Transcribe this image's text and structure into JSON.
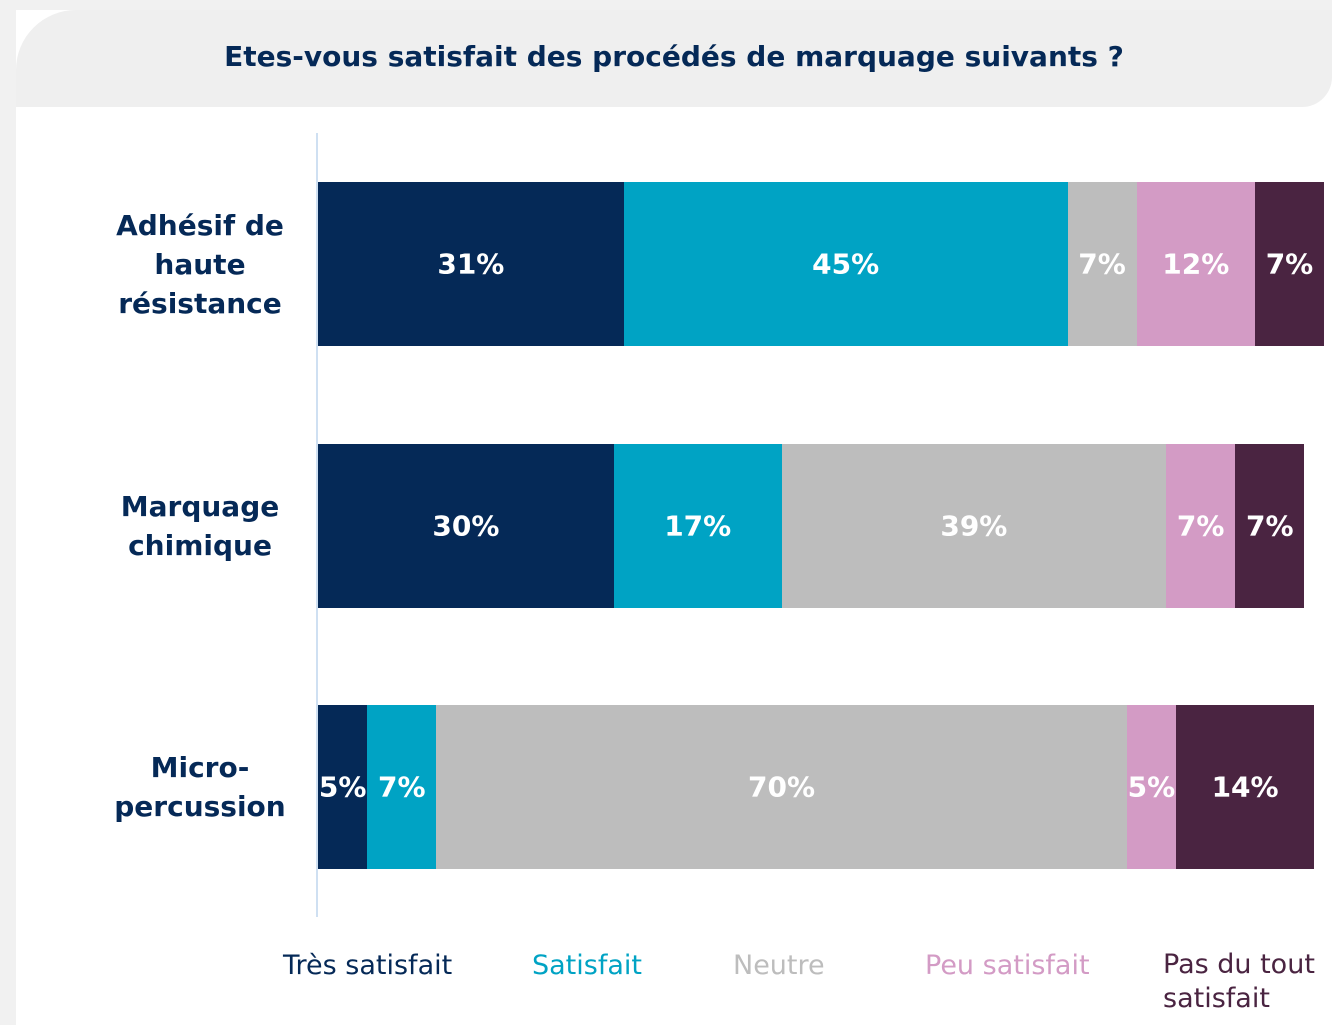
{
  "chart_data": {
    "type": "stacked-barh",
    "title": "Etes-vous satisfait des procédés de marquage suivants ?",
    "categories": [
      "Adhésif de haute résistance",
      "Marquage chimique",
      "Micro-percussion"
    ],
    "xlim": [
      0,
      102
    ],
    "series": [
      {
        "name": "Très satisfait",
        "color": "#052957",
        "values": [
          31,
          30,
          5
        ],
        "value_labels": [
          "31%",
          "30%",
          "5%"
        ]
      },
      {
        "name": "Satisfait",
        "color": "#00a3c4",
        "values": [
          45,
          17,
          7
        ],
        "value_labels": [
          "45%",
          "17%",
          "7%"
        ]
      },
      {
        "name": "Neutre",
        "color": "#bdbdbd",
        "values": [
          7,
          39,
          70
        ],
        "value_labels": [
          "7%",
          "39%",
          "70%"
        ]
      },
      {
        "name": "Peu satisfait",
        "color": "#d39bc5",
        "values": [
          12,
          7,
          5
        ],
        "value_labels": [
          "12%",
          "7%",
          "5%"
        ]
      },
      {
        "name": "Pas du tout satisfait",
        "color": "#4a2441",
        "values": [
          7,
          7,
          14
        ],
        "value_labels": [
          "7%",
          "7%",
          "14%"
        ]
      }
    ]
  }
}
